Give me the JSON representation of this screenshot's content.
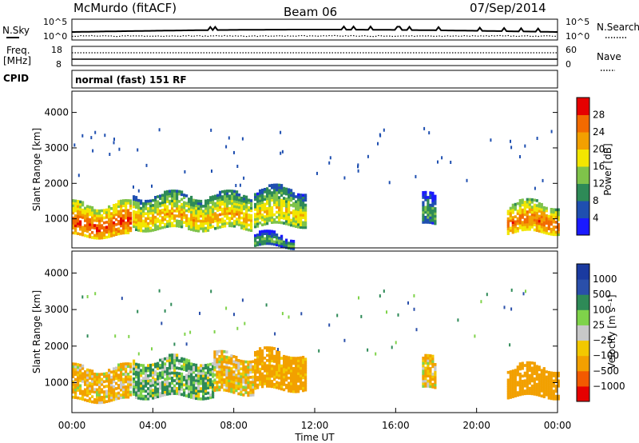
{
  "header": {
    "title": "McMurdo (fitACF)",
    "beam": "Beam 06",
    "date": "07/Sep/2014"
  },
  "top_panels": {
    "nsky_label": "N.Sky",
    "nsearch_label": "N.Search",
    "nsky_ticks": [
      "10^5",
      "10^0"
    ],
    "nsearch_ticks": [
      "10^5",
      "10^0"
    ],
    "freq_label": "Freq.",
    "freq_unit": "[MHz]",
    "freq_ticks": [
      "18",
      "8"
    ],
    "nave_label": "Nave",
    "nave_ticks": [
      "60",
      "0"
    ],
    "cpid_label": "CPID",
    "cpid_text": "normal (fast) 151 RF"
  },
  "colors": {
    "power_scale": [
      "#1a1aff",
      "#1f4fb0",
      "#2e8a57",
      "#7fc34a",
      "#f2e600",
      "#f2a000",
      "#f26a00",
      "#e60000"
    ],
    "velocity_scale": [
      "#e60000",
      "#f25a00",
      "#f2a000",
      "#f2c800",
      "#c8c8c8",
      "#7fd34a",
      "#2e8a57",
      "#2a4faa",
      "#1a3aa0"
    ]
  },
  "chart_data": [
    {
      "type": "heatmap",
      "title": "Power",
      "xlabel": "",
      "ylabel": "Slant Range [km]",
      "x_range_hours": [
        0,
        24
      ],
      "ylim": [
        180,
        4600
      ],
      "yticks": [
        "4000",
        "3000",
        "2000",
        "1000"
      ],
      "colorbar_label": "Power [dB]",
      "colorbar_ticks": [
        "28",
        "24",
        "20",
        "16",
        "12",
        "8",
        "4"
      ],
      "colorbar_range": [
        0,
        32
      ],
      "regions": [
        {
          "start_hour": 0.0,
          "end_hour": 2.9,
          "range_low": 500,
          "range_high": 1400,
          "power": 22
        },
        {
          "start_hour": 3.0,
          "end_hour": 8.9,
          "range_low": 700,
          "range_high": 1650,
          "power": 16
        },
        {
          "start_hour": 9.0,
          "end_hour": 11.6,
          "range_low": 800,
          "range_high": 1800,
          "power": 14
        },
        {
          "start_hour": 9.0,
          "end_hour": 11.0,
          "range_low": 200,
          "range_high": 500,
          "power": 8
        },
        {
          "start_hour": 17.3,
          "end_hour": 17.9,
          "range_low": 800,
          "range_high": 1600,
          "power": 8
        },
        {
          "start_hour": 21.5,
          "end_hour": 24.0,
          "range_low": 600,
          "range_high": 1400,
          "power": 20
        }
      ]
    },
    {
      "type": "heatmap",
      "title": "Velocity",
      "xlabel": "Time UT",
      "ylabel": "Slant Range [km]",
      "x_range_hours": [
        0,
        24
      ],
      "ylim": [
        180,
        4600
      ],
      "yticks": [
        "4000",
        "3000",
        "2000",
        "1000"
      ],
      "xticks": [
        "00:00",
        "04:00",
        "08:00",
        "12:00",
        "16:00",
        "20:00",
        "00:00"
      ],
      "colorbar_label": "Velocity [m s⁻¹]",
      "colorbar_ticks": [
        "1000",
        "500",
        "100",
        "25",
        "−25",
        "−100",
        "−500",
        "−1000"
      ],
      "regions": [
        {
          "start_hour": 0.0,
          "end_hour": 2.9,
          "range_low": 500,
          "range_high": 1400,
          "velocity": -100
        },
        {
          "start_hour": 3.0,
          "end_hour": 7.0,
          "range_low": 600,
          "range_high": 1600,
          "velocity": 100
        },
        {
          "start_hour": 7.0,
          "end_hour": 9.0,
          "range_low": 700,
          "range_high": 1700,
          "velocity": -100
        },
        {
          "start_hour": 9.0,
          "end_hour": 11.6,
          "range_low": 800,
          "range_high": 1800,
          "velocity": -200
        },
        {
          "start_hour": 17.3,
          "end_hour": 17.9,
          "range_low": 800,
          "range_high": 1600,
          "velocity": -100
        },
        {
          "start_hour": 21.5,
          "end_hour": 24.0,
          "range_low": 600,
          "range_high": 1400,
          "velocity": -300
        }
      ]
    }
  ]
}
